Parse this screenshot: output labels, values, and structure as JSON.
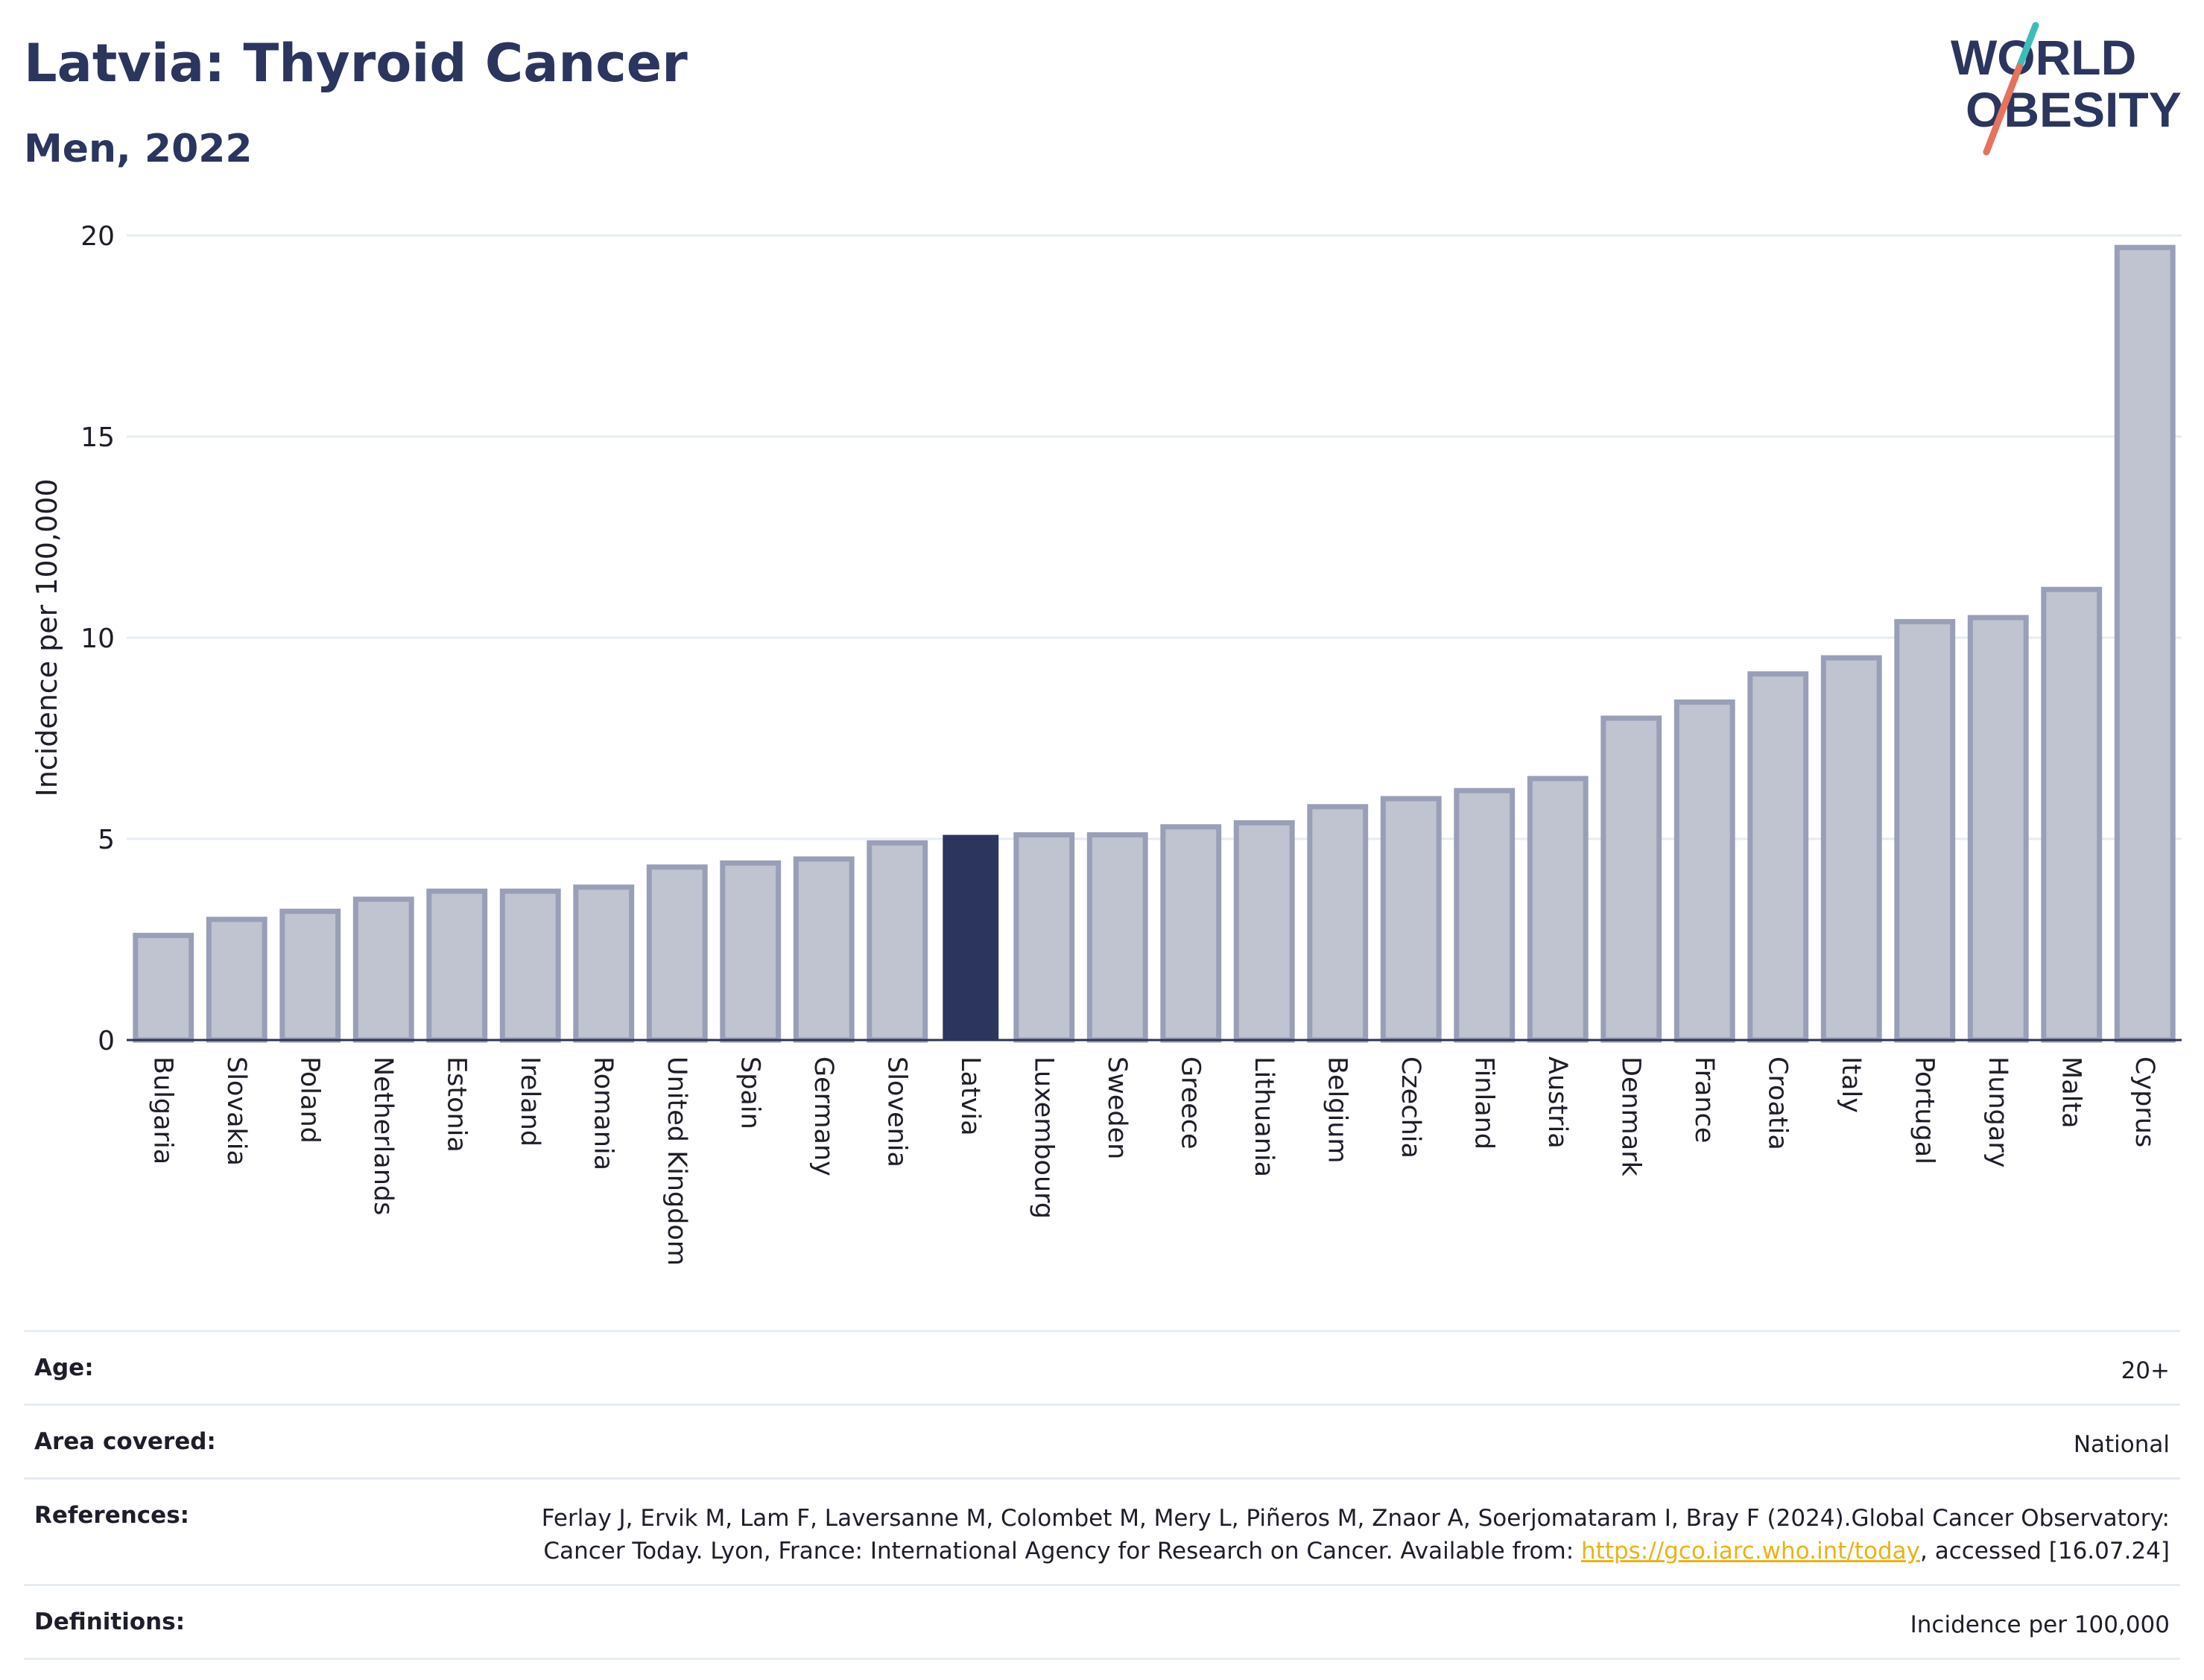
{
  "header": {
    "title": "Latvia: Thyroid Cancer",
    "subtitle": "Men, 2022"
  },
  "logo": {
    "line1": "WORLD",
    "line2": "OBESITY",
    "colors": {
      "text": "#2b355e",
      "slash_top": "#3dbdb8",
      "slash_bottom": "#e5735d"
    }
  },
  "chart_data": {
    "type": "bar",
    "title": "Latvia: Thyroid Cancer",
    "subtitle": "Men, 2022",
    "xlabel": "",
    "ylabel": "Incidence per 100,000",
    "ylim": [
      0,
      20
    ],
    "yticks": [
      0,
      5,
      10,
      15,
      20
    ],
    "grid": true,
    "highlight": "Latvia",
    "colors": {
      "bar": "#c0c3d0",
      "bar_edge": "#9a9fb8",
      "highlight": "#2b355e",
      "grid": "#e6ecf2",
      "axis": "#2b355e"
    },
    "categories": [
      "Bulgaria",
      "Slovakia",
      "Poland",
      "Netherlands",
      "Estonia",
      "Ireland",
      "Romania",
      "United Kingdom",
      "Spain",
      "Germany",
      "Slovenia",
      "Latvia",
      "Luxembourg",
      "Sweden",
      "Greece",
      "Lithuania",
      "Belgium",
      "Czechia",
      "Finland",
      "Austria",
      "Denmark",
      "France",
      "Croatia",
      "Italy",
      "Portugal",
      "Hungary",
      "Malta",
      "Cyprus"
    ],
    "values": [
      2.6,
      3.0,
      3.2,
      3.5,
      3.7,
      3.7,
      3.8,
      4.3,
      4.4,
      4.5,
      4.9,
      5.1,
      5.1,
      5.1,
      5.3,
      5.4,
      5.8,
      6.0,
      6.2,
      6.5,
      8.0,
      8.4,
      9.1,
      9.5,
      10.4,
      10.5,
      11.2,
      19.7
    ]
  },
  "metadata": [
    {
      "label": "Age:",
      "value": "20+"
    },
    {
      "label": "Area covered:",
      "value": "National"
    },
    {
      "label": "References:",
      "value_before": "Ferlay J, Ervik M, Lam F, Laversanne M, Colombet M, Mery L, Piñeros M, Znaor A, Soerjomataram I, Bray F (2024).Global Cancer Observatory: Cancer Today. Lyon, France: International Agency for Research on Cancer. Available from: ",
      "link": "https://gco.iarc.who.int/today",
      "value_after": ", accessed [16.07.24]"
    },
    {
      "label": "Definitions:",
      "value": "Incidence per 100,000"
    }
  ]
}
